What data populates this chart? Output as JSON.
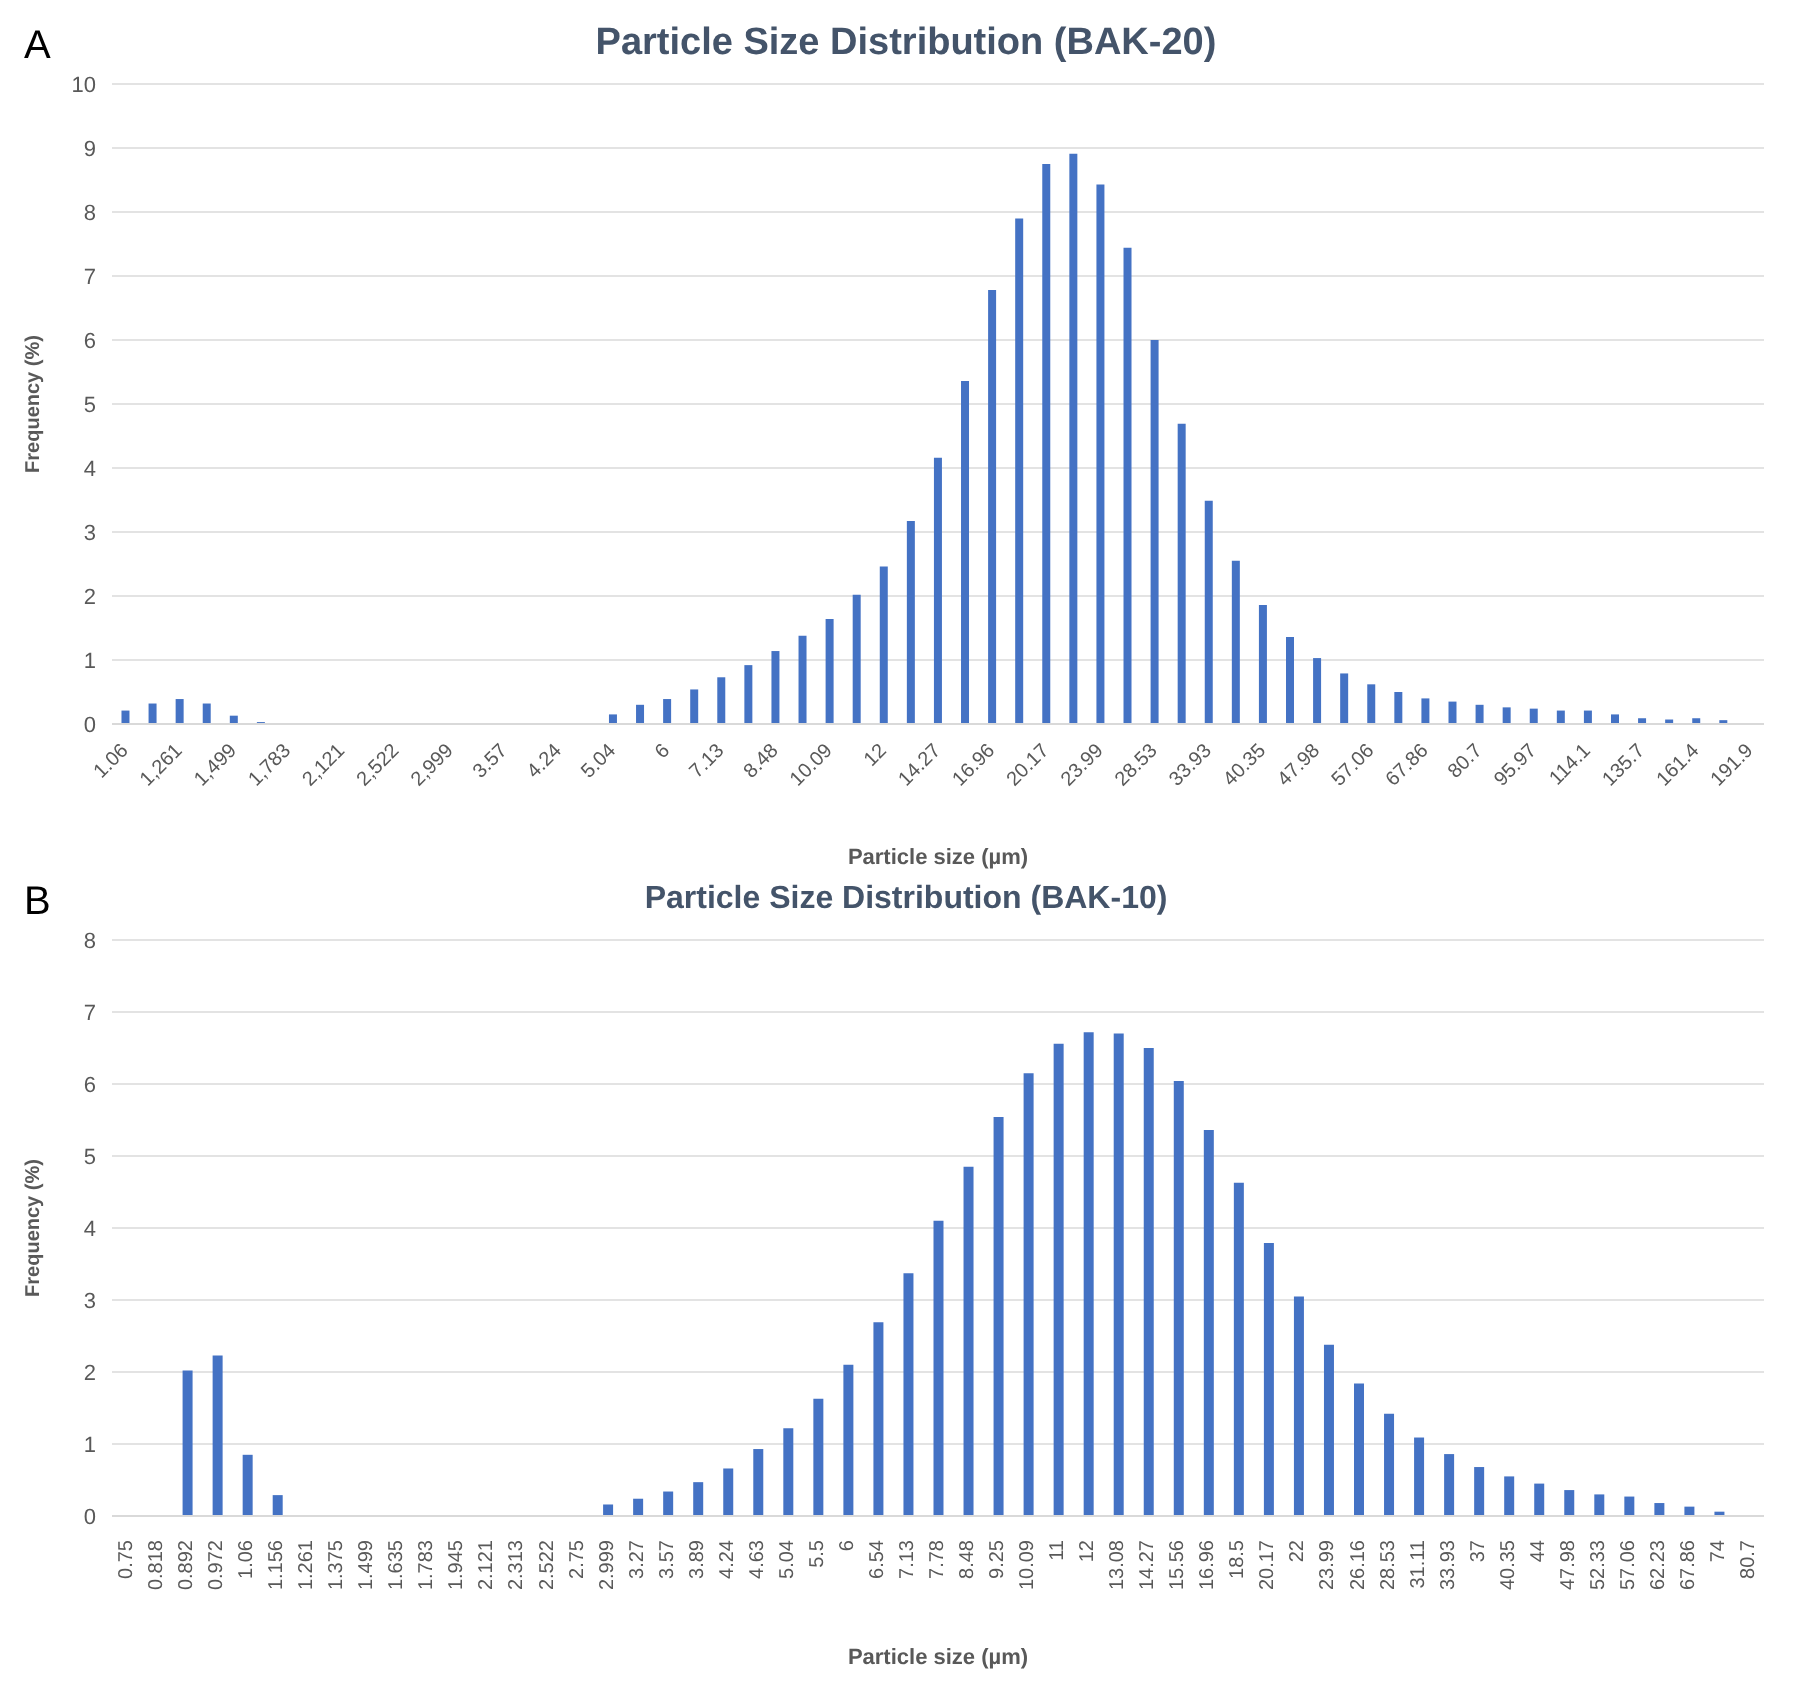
{
  "chart_data": [
    {
      "type": "bar",
      "title": "Particle Size Distribution (BAK-20)",
      "xlabel": "Particle size (µm)",
      "ylabel": "Frequency (%)",
      "annotations": [
        "A"
      ],
      "color": "#4472c4",
      "grid": "y",
      "ylim": [
        0,
        10
      ],
      "yticks": [
        0,
        1,
        2,
        3,
        4,
        5,
        6,
        7,
        8,
        9,
        10
      ],
      "categories": [
        "1.06",
        null,
        "1,261",
        null,
        "1,499",
        null,
        "1,783",
        null,
        "2,121",
        null,
        "2,522",
        null,
        "2,999",
        null,
        "3.57",
        null,
        "4.24",
        null,
        "5.04",
        null,
        "6",
        null,
        "7.13",
        null,
        "8.48",
        null,
        "10.09",
        null,
        "12",
        null,
        "14.27",
        null,
        "16.96",
        null,
        "20.17",
        null,
        "23.99",
        null,
        "28.53",
        null,
        "33.93",
        null,
        "40.35",
        null,
        "47.98",
        null,
        "57.06",
        null,
        "67.86",
        null,
        "80.7",
        null,
        "95.97",
        null,
        "114.1",
        null,
        "135.7",
        null,
        "161.4",
        null,
        "191.9"
      ],
      "values": [
        0.21,
        0.32,
        0.39,
        0.32,
        0.13,
        0.03,
        0,
        0,
        0,
        0,
        0,
        0,
        0,
        0,
        0,
        0,
        0,
        0,
        0.15,
        0.3,
        0.39,
        0.54,
        0.73,
        0.92,
        1.14,
        1.38,
        1.64,
        2.02,
        2.46,
        3.17,
        4.16,
        5.36,
        6.78,
        7.9,
        8.75,
        8.91,
        8.43,
        7.44,
        6.0,
        4.69,
        3.49,
        2.55,
        1.86,
        1.36,
        1.03,
        0.79,
        0.62,
        0.5,
        0.4,
        0.35,
        0.3,
        0.26,
        0.24,
        0.21,
        0.21,
        0.15,
        0.09,
        0.07,
        0.09,
        0.06,
        0
      ]
    },
    {
      "type": "bar",
      "title": "Particle Size Distribution (BAK-10)",
      "xlabel": "Particle size (µm)",
      "ylabel": "Frequency (%)",
      "annotations": [
        "B"
      ],
      "color": "#4472c4",
      "grid": "y",
      "ylim": [
        0,
        8
      ],
      "yticks": [
        0,
        1,
        2,
        3,
        4,
        5,
        6,
        7,
        8
      ],
      "categories": [
        "0.75",
        "0.818",
        "0.892",
        "0.972",
        "1.06",
        "1.156",
        "1.261",
        "1.375",
        "1.499",
        "1.635",
        "1.783",
        "1.945",
        "2.121",
        "2.313",
        "2.522",
        "2.75",
        "2.999",
        "3.27",
        "3.57",
        "3.89",
        "4.24",
        "4.63",
        "5.04",
        "5.5",
        "6",
        "6.54",
        "7.13",
        "7.78",
        "8.48",
        "9.25",
        "10.09",
        "11",
        "12",
        "13.08",
        "14.27",
        "15.56",
        "16.96",
        "18.5",
        "20.17",
        "22",
        "23.99",
        "26.16",
        "28.53",
        "31.11",
        "33.93",
        "37",
        "40.35",
        "44",
        "47.98",
        "52.33",
        "57.06",
        "62.23",
        "67.86",
        "74",
        "80.7"
      ],
      "values": [
        0,
        0,
        2.02,
        2.23,
        0.85,
        0.29,
        0,
        0,
        0,
        0,
        0,
        0,
        0,
        0,
        0,
        0,
        0.16,
        0.24,
        0.34,
        0.47,
        0.66,
        0.93,
        1.22,
        1.63,
        2.1,
        2.69,
        3.37,
        4.1,
        4.85,
        5.54,
        6.15,
        6.56,
        6.72,
        6.7,
        6.5,
        6.04,
        5.36,
        4.63,
        3.79,
        3.05,
        2.38,
        1.84,
        1.42,
        1.09,
        0.86,
        0.68,
        0.55,
        0.45,
        0.36,
        0.3,
        0.27,
        0.18,
        0.13,
        0.06,
        0
      ]
    }
  ]
}
